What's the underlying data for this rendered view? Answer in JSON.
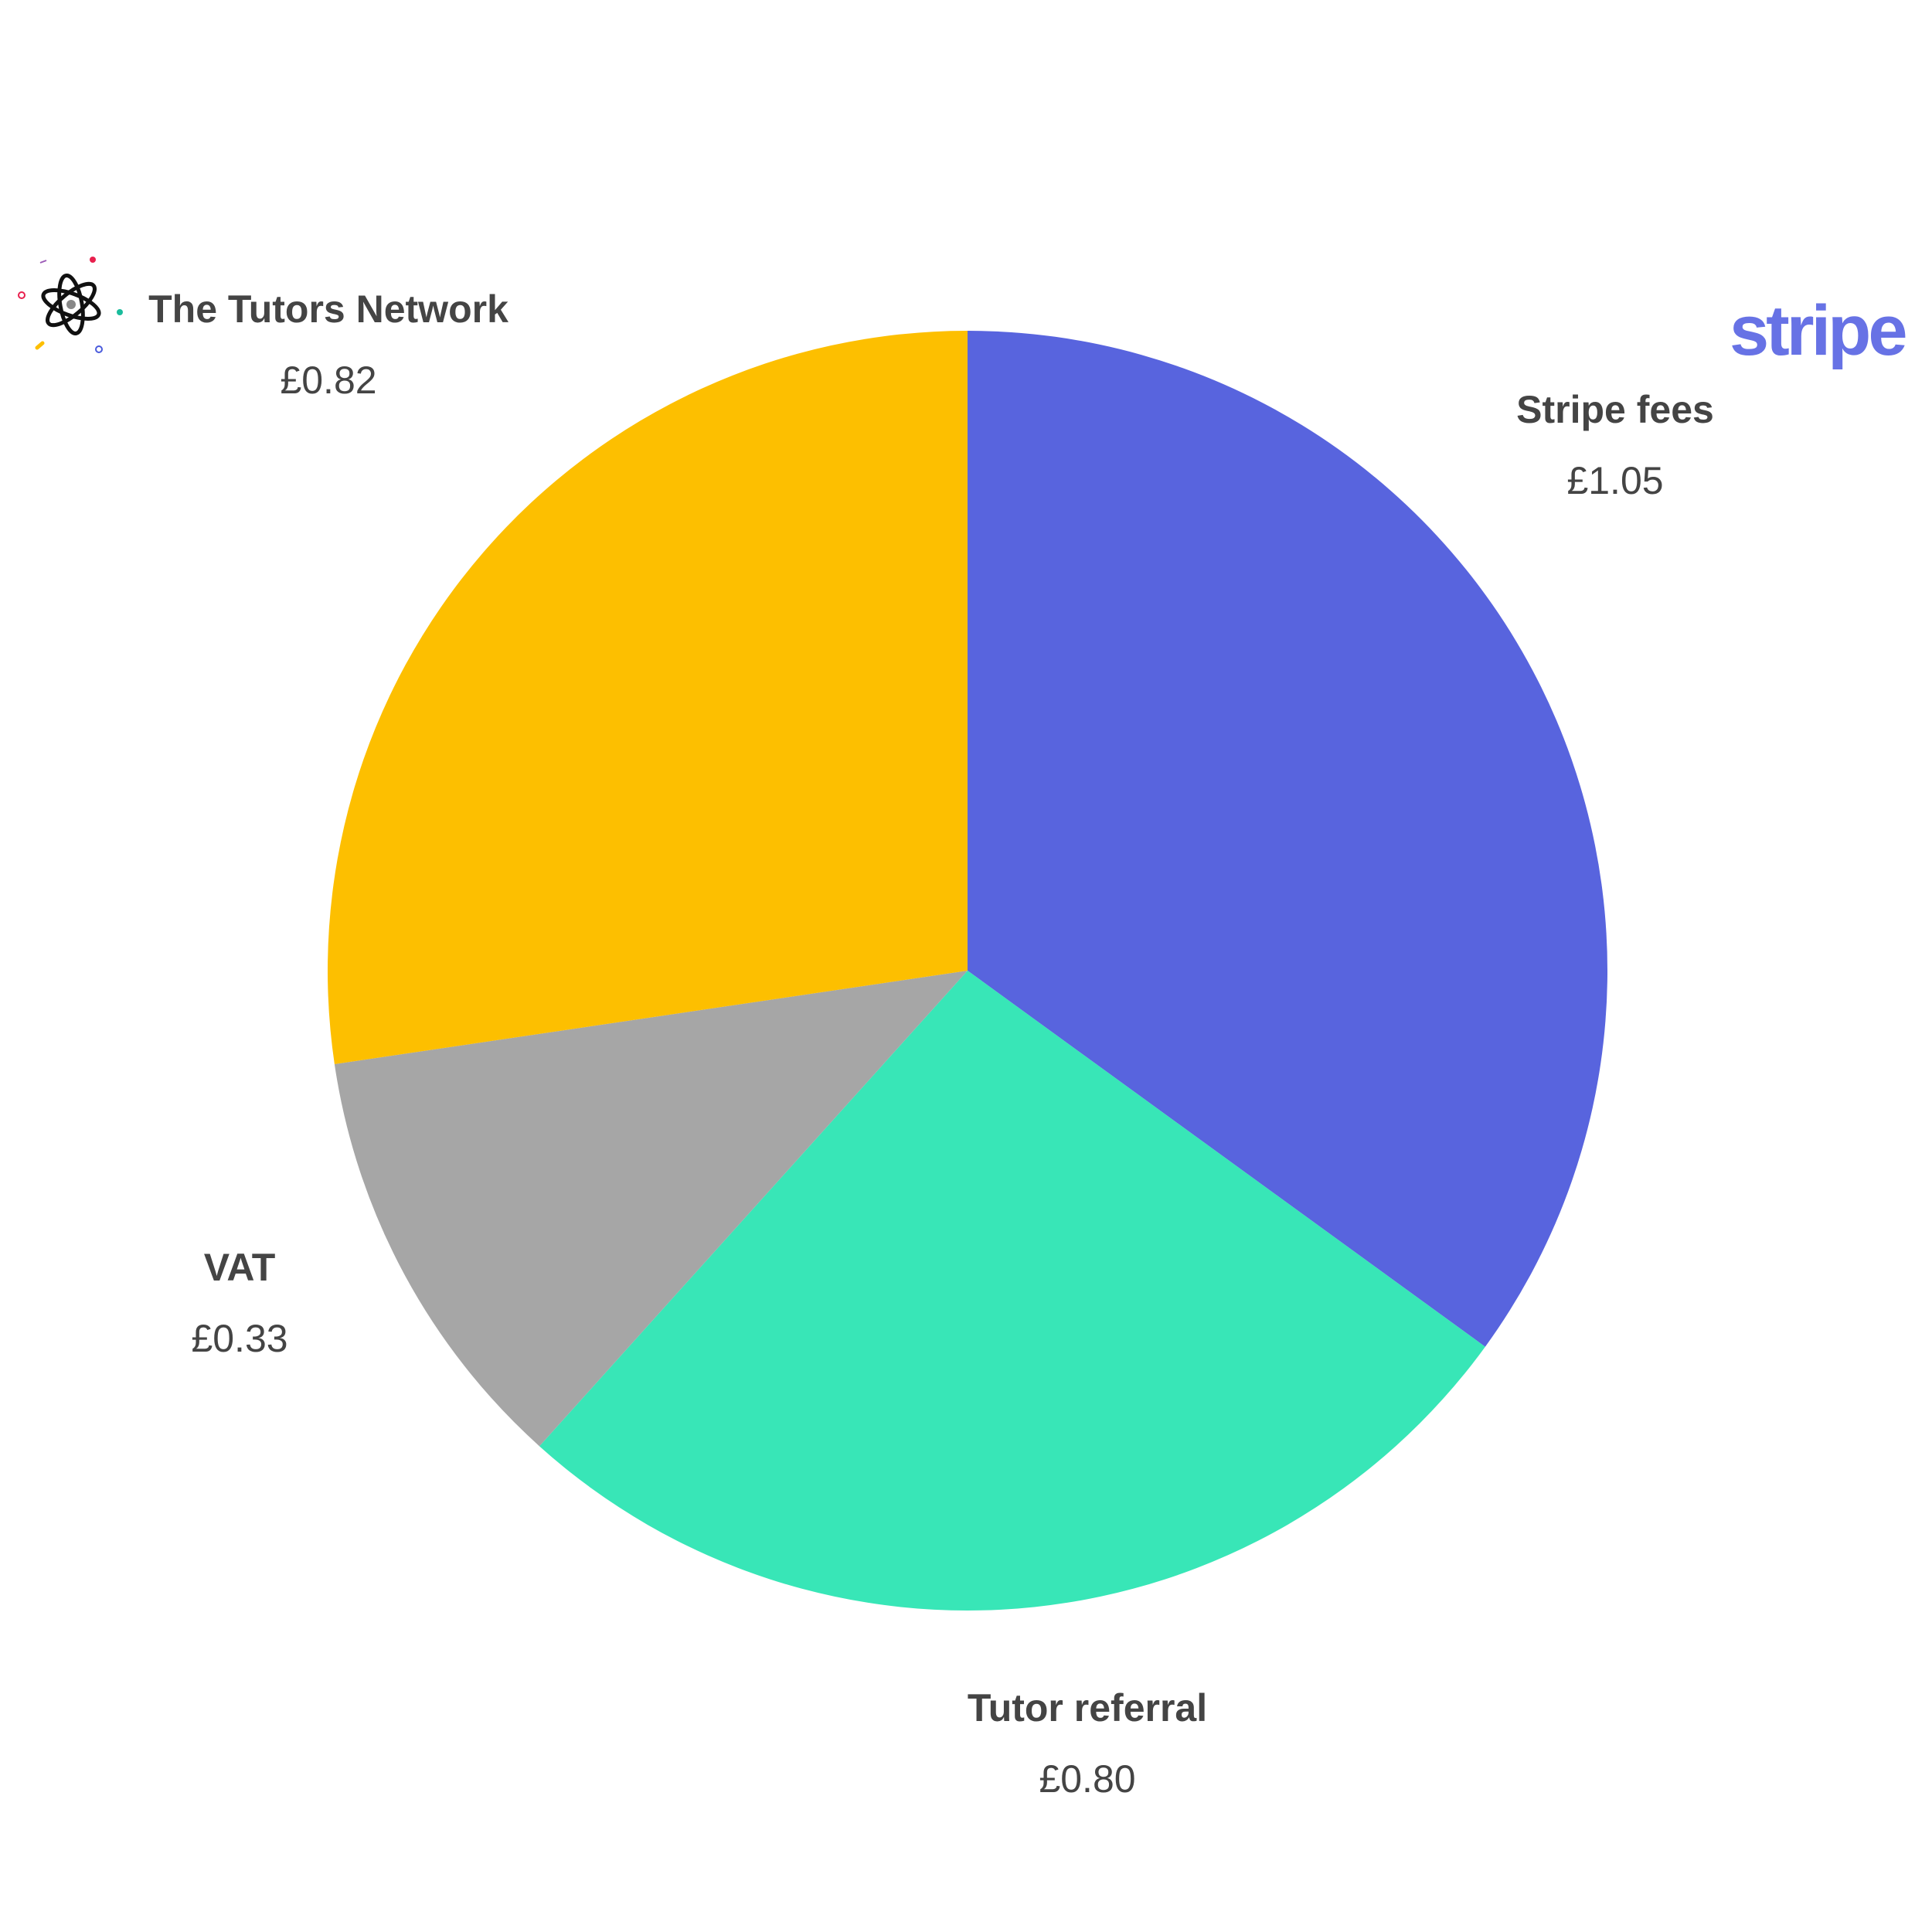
{
  "chart_data": {
    "type": "pie",
    "start_angle_deg": 0,
    "direction": "clockwise",
    "slices": [
      {
        "label": "Stripe fees",
        "value": 1.05,
        "value_label": "£1.05",
        "color": "#5864de"
      },
      {
        "label": "Tutor referral",
        "value": 0.8,
        "value_label": "£0.80",
        "color": "#38e6b7"
      },
      {
        "label": "VAT",
        "value": 0.33,
        "value_label": "£0.33",
        "color": "#a6a6a6"
      },
      {
        "label": "The Tutors Network",
        "value": 0.82,
        "value_label": "£0.82",
        "color": "#fdbf00"
      }
    ]
  },
  "logos": {
    "stripe": {
      "text": "stripe",
      "color": "#6772e5",
      "icon": "stripe-logo"
    },
    "tutors_network": {
      "icon": "atom-logo-icon"
    }
  },
  "colors": {
    "label_text": "#444444",
    "background": "#ffffff"
  }
}
